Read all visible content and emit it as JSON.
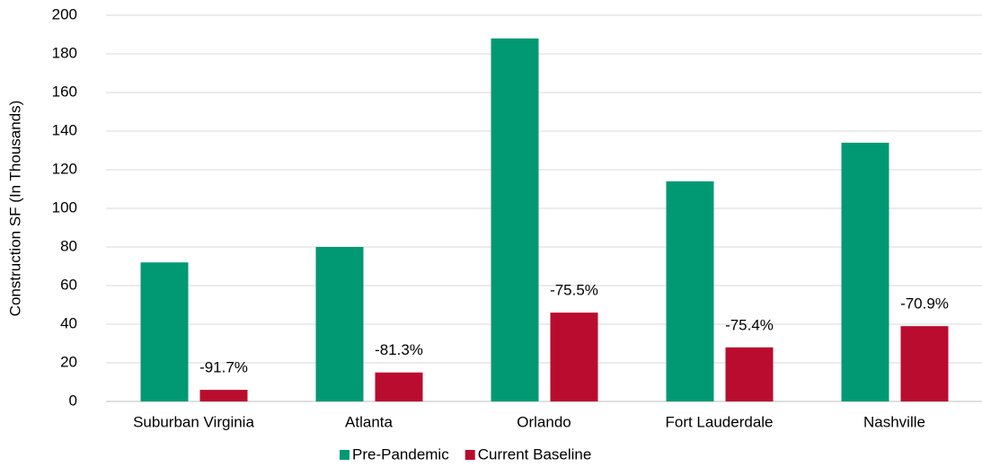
{
  "chart_data": {
    "type": "bar",
    "y_label": "Construction SF (In Thousands)",
    "categories": [
      "Suburban Virginia",
      "Atlanta",
      "Orlando",
      "Fort Lauderdale",
      "Nashville"
    ],
    "series": [
      {
        "name": "Pre-Pandemic",
        "color": "#009973",
        "values": [
          72,
          80,
          188,
          114,
          134
        ]
      },
      {
        "name": "Current Baseline",
        "color": "#ba0c2f",
        "values": [
          6,
          15,
          46,
          28,
          39
        ]
      }
    ],
    "annotations": [
      "-91.7%",
      "-81.3%",
      "-75.5%",
      "-75.4%",
      "-70.9%"
    ],
    "ylim": [
      0,
      200
    ],
    "yticks": [
      0,
      20,
      40,
      60,
      80,
      100,
      120,
      140,
      160,
      180,
      200
    ],
    "grid": true,
    "legend": "bottom"
  }
}
